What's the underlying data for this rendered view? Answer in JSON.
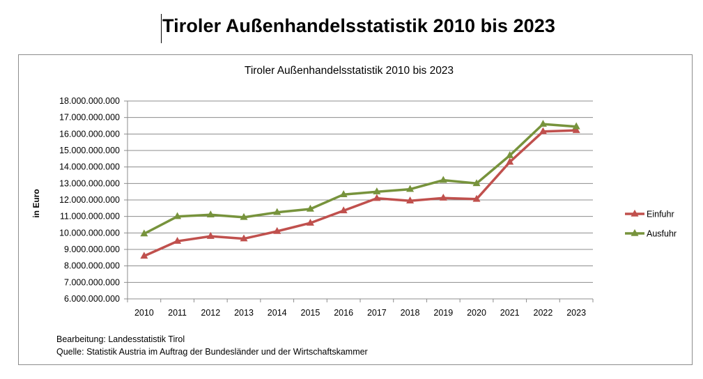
{
  "page": {
    "title": "Tiroler Außenhandelsstatistik 2010 bis 2023"
  },
  "notes": {
    "line1": "Bearbeitung: Landesstatistik Tirol",
    "line2": "Quelle: Statistik Austria im Auftrag der Bundesländer und der Wirtschaftskammer"
  },
  "chart_data": {
    "type": "line",
    "title": "Tiroler Außenhandelsstatistik 2010 bis 2023",
    "xlabel": "",
    "ylabel": "in Euro",
    "ylim": [
      6000000000,
      18000000000
    ],
    "y_ticks": [
      "6.000.000.000",
      "7.000.000.000",
      "8.000.000.000",
      "9.000.000.000",
      "10.000.000.000",
      "11.000.000.000",
      "12.000.000.000",
      "13.000.000.000",
      "14.000.000.000",
      "15.000.000.000",
      "16.000.000.000",
      "17.000.000.000",
      "18.000.000.000"
    ],
    "grid": true,
    "legend": "right",
    "categories": [
      "2010",
      "2011",
      "2012",
      "2013",
      "2014",
      "2015",
      "2016",
      "2017",
      "2018",
      "2019",
      "2020",
      "2021",
      "2022",
      "2023"
    ],
    "series": [
      {
        "name": "Einfuhr",
        "color": "#c0504d",
        "marker": "triangle",
        "values": [
          8600000000,
          9500000000,
          9800000000,
          9650000000,
          10100000000,
          10600000000,
          11350000000,
          12100000000,
          11950000000,
          12120000000,
          12050000000,
          14300000000,
          16150000000,
          16220000000
        ]
      },
      {
        "name": "Ausfuhr",
        "color": "#77933c",
        "marker": "triangle",
        "values": [
          9950000000,
          11000000000,
          11100000000,
          10950000000,
          11250000000,
          11450000000,
          12330000000,
          12500000000,
          12650000000,
          13200000000,
          13000000000,
          14700000000,
          16600000000,
          16450000000
        ]
      }
    ]
  }
}
